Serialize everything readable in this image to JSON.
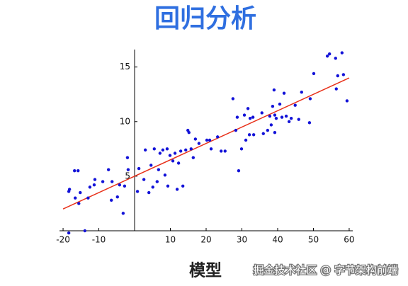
{
  "chart_data": {
    "type": "scatter",
    "title": "回归分析",
    "caption": "模型",
    "watermark": "掘金技术社区 @ 字节架构前端",
    "xlim": [
      -21,
      61
    ],
    "ylim": [
      0,
      16.6
    ],
    "xticks": [
      -20,
      -10,
      10,
      20,
      30,
      40,
      50,
      60
    ],
    "yticks": [
      5,
      10,
      15
    ],
    "series": [
      {
        "color": "#1212d8",
        "x": [
          -18.4,
          -18.2,
          -16.8,
          -15.8,
          -16.6,
          -15.6,
          -15.2,
          -18.4,
          -13.9,
          -13,
          -12.5,
          -11.3,
          -11.1,
          -8.9,
          -7.3,
          -6.5,
          -6.3,
          -4.8,
          -4.2,
          -3.2,
          -2.8,
          -2,
          -1.8,
          0.8,
          1.2,
          2.6,
          3,
          4,
          4.6,
          5.1,
          5.5,
          6.3,
          6.7,
          7.1,
          7.9,
          8.5,
          9.1,
          9.3,
          9.9,
          10.7,
          11.3,
          11.9,
          12.3,
          12.9,
          13.5,
          14.3,
          14.9,
          15.2,
          15.8,
          16.4,
          17,
          18,
          20.2,
          21,
          21.4,
          23.2,
          24.2,
          25.3,
          27.5,
          28.3,
          28.7,
          29.1,
          29.9,
          30.7,
          31.1,
          31.7,
          32.1,
          32.3,
          33.1,
          33.3,
          35.6,
          36,
          37.2,
          37.8,
          38.2,
          38.6,
          39,
          39.2,
          39.2,
          39.6,
          40.6,
          41.2,
          41.8,
          42.4,
          43.2,
          43.8,
          44.9,
          45.9,
          46.7,
          48.9,
          49.1,
          50.1,
          53.9,
          54.5,
          56.2,
          56.4,
          56.8,
          58,
          58.4,
          59.4
        ],
        "values": [
          3.6,
          3.8,
          5.5,
          5.5,
          3,
          2.5,
          3.5,
          -0.2,
          0,
          3,
          4,
          4.2,
          4.7,
          4.5,
          5.6,
          2.8,
          4.5,
          3.1,
          4.2,
          1.6,
          4.1,
          6.7,
          5.6,
          3.6,
          5.7,
          4.7,
          7.4,
          3.5,
          6,
          4,
          7.5,
          4.5,
          5.6,
          7.1,
          7.4,
          5.1,
          7.5,
          4.1,
          6.9,
          6.4,
          7.1,
          3.8,
          6.2,
          7.3,
          4.1,
          7.4,
          9.2,
          9,
          7.5,
          6.7,
          8.4,
          8,
          8.3,
          8.3,
          7.5,
          8.6,
          7.3,
          7.3,
          12.1,
          9.2,
          10.4,
          5.5,
          7.5,
          10.6,
          8.3,
          11.2,
          8.8,
          10.3,
          10.4,
          8.8,
          10.8,
          8.9,
          9.2,
          10.5,
          9.7,
          11.4,
          12.9,
          9,
          10.6,
          10.3,
          11.6,
          10.4,
          12.6,
          10.5,
          10,
          10.3,
          11.5,
          10.2,
          12.7,
          9.9,
          12.1,
          14.4,
          16,
          16.2,
          15.8,
          13,
          14.2,
          16.3,
          14.3,
          11.9
        ]
      }
    ],
    "fit_line": {
      "color": "#e8311a",
      "x": [
        -20,
        60
      ],
      "values": [
        2,
        14
      ]
    }
  }
}
